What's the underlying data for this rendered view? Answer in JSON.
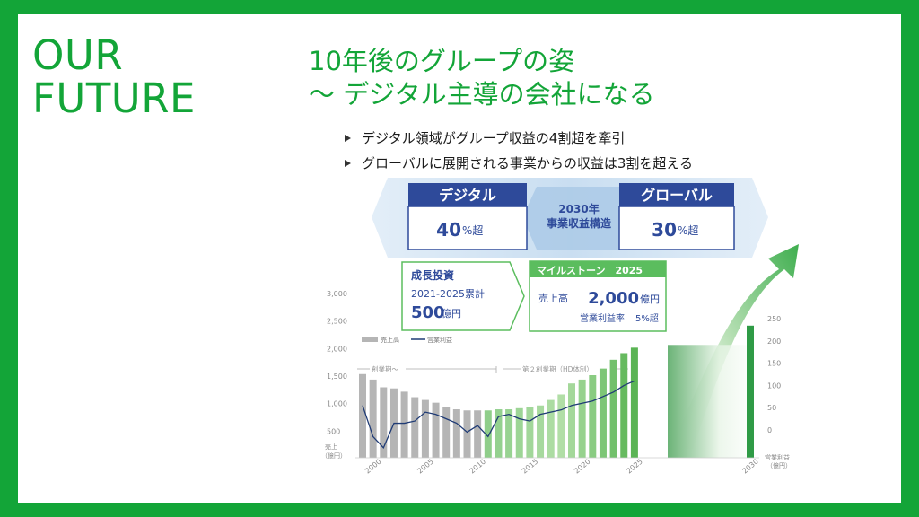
{
  "left_title": [
    "OUR",
    "FUTURE"
  ],
  "title_line1": "10年後のグループの姿",
  "title_line2": "～ デジタル主導の会社になる",
  "bullets": [
    "デジタル領域がグループ収益の4割超を牽引",
    "グローバルに展開される事業からの収益は3割を超える"
  ],
  "structure": {
    "left_label": "デジタル",
    "left_value": "40",
    "left_unit": "%超",
    "center_line1": "2030年",
    "center_line2": "事業収益構造",
    "right_label": "グローバル",
    "right_value": "30",
    "right_unit": "%超"
  },
  "growth_box": {
    "title": "成長投資",
    "period": "2021-2025累計",
    "value": "500",
    "unit": "億円"
  },
  "milestone": {
    "title": "マイルストーン　2025",
    "sales_label": "売上高",
    "sales_value": "2,000",
    "sales_unit": "億円",
    "margin_label": "営業利益率",
    "margin_value": "5%超"
  },
  "colors": {
    "brand_green": "#13a538",
    "navy": "#2a3f8f",
    "light_blue": "#cfe3f4",
    "gray_bar": "#b5b5b5",
    "green_bar": "#8fce8a",
    "line": "#1f3b75"
  },
  "chart_data": {
    "type": "bar",
    "y_left_ticks": [
      "3,000",
      "2,500",
      "2,000",
      "1,500",
      "1,000",
      "500"
    ],
    "y_left_label": "売上\n（億円）",
    "y_right_ticks": [
      "250",
      "200",
      "150",
      "100",
      "50",
      "0"
    ],
    "y_right_label": "営業利益\n（億円）",
    "x_ticks": [
      "2000",
      "2005",
      "2010",
      "2015",
      "2020",
      "2025",
      "2030"
    ],
    "legend": [
      "売上高",
      "営業利益"
    ],
    "period_labels": [
      "創業期〜",
      "第２創業期（HD体制）"
    ],
    "ylim_left": [
      0,
      3000
    ],
    "ylim_right": [
      -50,
      250
    ],
    "bars": [
      {
        "year": 1999,
        "sales": 1520,
        "phase": "gray"
      },
      {
        "year": 2000,
        "sales": 1420,
        "phase": "gray"
      },
      {
        "year": 2001,
        "sales": 1280,
        "phase": "gray"
      },
      {
        "year": 2002,
        "sales": 1260,
        "phase": "gray"
      },
      {
        "year": 2003,
        "sales": 1200,
        "phase": "gray"
      },
      {
        "year": 2004,
        "sales": 1100,
        "phase": "gray"
      },
      {
        "year": 2005,
        "sales": 1050,
        "phase": "gray"
      },
      {
        "year": 2006,
        "sales": 1000,
        "phase": "gray"
      },
      {
        "year": 2007,
        "sales": 920,
        "phase": "gray"
      },
      {
        "year": 2008,
        "sales": 880,
        "phase": "gray"
      },
      {
        "year": 2009,
        "sales": 860,
        "phase": "gray"
      },
      {
        "year": 2010,
        "sales": 860,
        "phase": "gray"
      },
      {
        "year": 2011,
        "sales": 860,
        "phase": "green"
      },
      {
        "year": 2012,
        "sales": 880,
        "phase": "green"
      },
      {
        "year": 2013,
        "sales": 880,
        "phase": "green"
      },
      {
        "year": 2014,
        "sales": 900,
        "phase": "green"
      },
      {
        "year": 2015,
        "sales": 920,
        "phase": "green"
      },
      {
        "year": 2016,
        "sales": 950,
        "phase": "green"
      },
      {
        "year": 2017,
        "sales": 1050,
        "phase": "green"
      },
      {
        "year": 2018,
        "sales": 1150,
        "phase": "green"
      },
      {
        "year": 2019,
        "sales": 1350,
        "phase": "green"
      },
      {
        "year": 2020,
        "sales": 1420,
        "phase": "green"
      },
      {
        "year": 2021,
        "sales": 1500,
        "phase": "green"
      },
      {
        "year": 2022,
        "sales": 1620,
        "phase": "green"
      },
      {
        "year": 2023,
        "sales": 1780,
        "phase": "green"
      },
      {
        "year": 2024,
        "sales": 1900,
        "phase": "green"
      },
      {
        "year": 2025,
        "sales": 2000,
        "phase": "green"
      },
      {
        "year": 2030,
        "sales": 2400,
        "phase": "target"
      }
    ],
    "operating_profit": [
      {
        "year": 1999,
        "v": 55
      },
      {
        "year": 2000,
        "v": -15
      },
      {
        "year": 2001,
        "v": -40
      },
      {
        "year": 2002,
        "v": 15
      },
      {
        "year": 2003,
        "v": 15
      },
      {
        "year": 2004,
        "v": 20
      },
      {
        "year": 2005,
        "v": 40
      },
      {
        "year": 2006,
        "v": 35
      },
      {
        "year": 2007,
        "v": 25
      },
      {
        "year": 2008,
        "v": 15
      },
      {
        "year": 2009,
        "v": -5
      },
      {
        "year": 2010,
        "v": 10
      },
      {
        "year": 2011,
        "v": -15
      },
      {
        "year": 2012,
        "v": 30
      },
      {
        "year": 2013,
        "v": 35
      },
      {
        "year": 2014,
        "v": 25
      },
      {
        "year": 2015,
        "v": 20
      },
      {
        "year": 2016,
        "v": 35
      },
      {
        "year": 2017,
        "v": 40
      },
      {
        "year": 2018,
        "v": 45
      },
      {
        "year": 2019,
        "v": 55
      },
      {
        "year": 2020,
        "v": 60
      },
      {
        "year": 2021,
        "v": 65
      },
      {
        "year": 2022,
        "v": 75
      },
      {
        "year": 2023,
        "v": 85
      },
      {
        "year": 2024,
        "v": 100
      },
      {
        "year": 2025,
        "v": 110
      }
    ]
  }
}
